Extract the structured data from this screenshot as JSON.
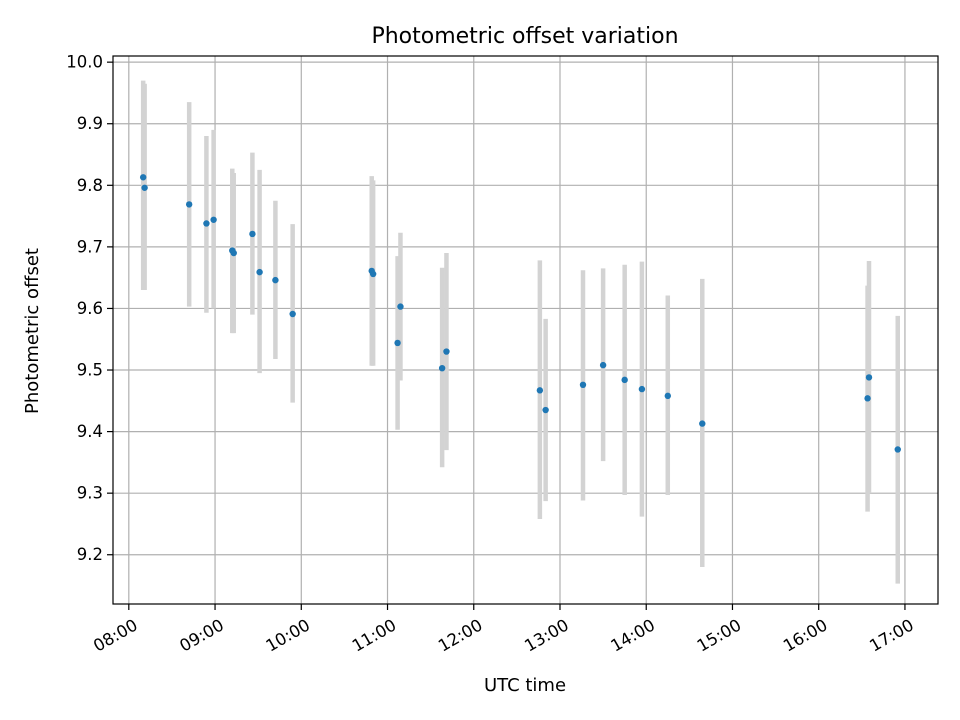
{
  "chart_data": {
    "type": "scatter",
    "title": "Photometric offset variation",
    "xlabel": "UTC time",
    "ylabel": "Photometric offset",
    "grid": true,
    "legend": "none",
    "x_ticks": [
      "08:00",
      "09:00",
      "10:00",
      "11:00",
      "12:00",
      "13:00",
      "14:00",
      "15:00",
      "16:00",
      "17:00"
    ],
    "y_ticks": [
      "9.2",
      "9.3",
      "9.4",
      "9.5",
      "9.6",
      "9.7",
      "9.8",
      "9.9",
      "10.0"
    ],
    "xlim": [
      "07:49",
      "17:23"
    ],
    "ylim": [
      9.12,
      10.01
    ],
    "marker_color": "#1f77b4",
    "errorbar_color": "#d3d3d3",
    "series": [
      {
        "points": [
          {
            "x": "08:10",
            "y": 9.813,
            "ylow": 9.63,
            "yhigh": 9.97
          },
          {
            "x": "08:11",
            "y": 9.796,
            "ylow": 9.63,
            "yhigh": 9.965
          },
          {
            "x": "08:42",
            "y": 9.769,
            "ylow": 9.603,
            "yhigh": 9.935
          },
          {
            "x": "08:54",
            "y": 9.738,
            "ylow": 9.593,
            "yhigh": 9.88
          },
          {
            "x": "08:59",
            "y": 9.744,
            "ylow": 9.6,
            "yhigh": 9.89
          },
          {
            "x": "09:12",
            "y": 9.694,
            "ylow": 9.56,
            "yhigh": 9.827
          },
          {
            "x": "09:13",
            "y": 9.69,
            "ylow": 9.56,
            "yhigh": 9.82
          },
          {
            "x": "09:26",
            "y": 9.721,
            "ylow": 9.59,
            "yhigh": 9.853
          },
          {
            "x": "09:31",
            "y": 9.659,
            "ylow": 9.495,
            "yhigh": 9.825
          },
          {
            "x": "09:42",
            "y": 9.646,
            "ylow": 9.518,
            "yhigh": 9.775
          },
          {
            "x": "09:54",
            "y": 9.591,
            "ylow": 9.447,
            "yhigh": 9.737
          },
          {
            "x": "10:49",
            "y": 9.661,
            "ylow": 9.507,
            "yhigh": 9.815
          },
          {
            "x": "10:50",
            "y": 9.656,
            "ylow": 9.507,
            "yhigh": 9.808
          },
          {
            "x": "11:07",
            "y": 9.544,
            "ylow": 9.403,
            "yhigh": 9.685
          },
          {
            "x": "11:09",
            "y": 9.603,
            "ylow": 9.483,
            "yhigh": 9.723
          },
          {
            "x": "11:38",
            "y": 9.503,
            "ylow": 9.342,
            "yhigh": 9.666
          },
          {
            "x": "11:41",
            "y": 9.53,
            "ylow": 9.37,
            "yhigh": 9.69
          },
          {
            "x": "12:46",
            "y": 9.467,
            "ylow": 9.258,
            "yhigh": 9.678
          },
          {
            "x": "12:50",
            "y": 9.435,
            "ylow": 9.287,
            "yhigh": 9.583
          },
          {
            "x": "13:16",
            "y": 9.476,
            "ylow": 9.288,
            "yhigh": 9.662
          },
          {
            "x": "13:30",
            "y": 9.508,
            "ylow": 9.352,
            "yhigh": 9.665
          },
          {
            "x": "13:45",
            "y": 9.484,
            "ylow": 9.297,
            "yhigh": 9.671
          },
          {
            "x": "13:57",
            "y": 9.469,
            "ylow": 9.262,
            "yhigh": 9.676
          },
          {
            "x": "14:15",
            "y": 9.458,
            "ylow": 9.297,
            "yhigh": 9.621
          },
          {
            "x": "14:39",
            "y": 9.413,
            "ylow": 9.18,
            "yhigh": 9.648
          },
          {
            "x": "16:34",
            "y": 9.454,
            "ylow": 9.27,
            "yhigh": 9.637
          },
          {
            "x": "16:35",
            "y": 9.488,
            "ylow": 9.3,
            "yhigh": 9.677
          },
          {
            "x": "16:55",
            "y": 9.371,
            "ylow": 9.153,
            "yhigh": 9.588
          }
        ]
      }
    ]
  }
}
